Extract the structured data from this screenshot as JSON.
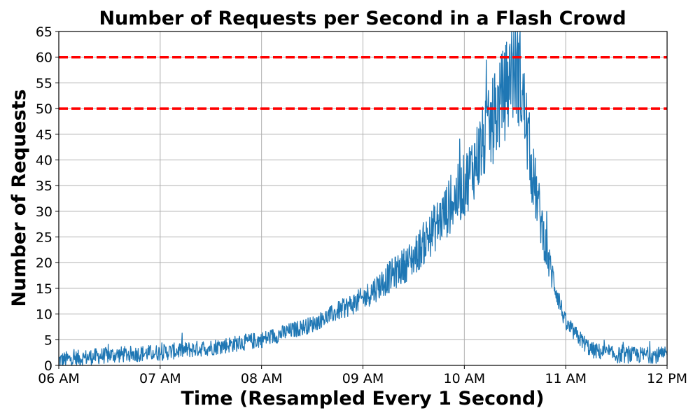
{
  "chart_data": {
    "type": "line",
    "title": "Number of Requests per Second in a Flash Crowd",
    "xlabel": "Time (Resampled Every 1 Second)",
    "ylabel": "Number of Requests",
    "x_ticks": [
      "06 AM",
      "07 AM",
      "08 AM",
      "09 AM",
      "10 AM",
      "11 AM",
      "12 PM"
    ],
    "x_range": [
      "06:00",
      "12:00"
    ],
    "ylim": [
      0,
      65
    ],
    "y_ticks": [
      0,
      5,
      10,
      15,
      20,
      25,
      30,
      35,
      40,
      45,
      50,
      55,
      60,
      65
    ],
    "grid": true,
    "series": [
      {
        "color": "#1f77b4",
        "resample_interval_seconds": 1,
        "trend_points": [
          {
            "time": "06:00",
            "value": 1
          },
          {
            "time": "06:30",
            "value": 2
          },
          {
            "time": "07:00",
            "value": 2.5
          },
          {
            "time": "07:30",
            "value": 3.5
          },
          {
            "time": "08:00",
            "value": 5
          },
          {
            "time": "08:30",
            "value": 8
          },
          {
            "time": "09:00",
            "value": 13
          },
          {
            "time": "09:30",
            "value": 21
          },
          {
            "time": "10:00",
            "value": 35
          },
          {
            "time": "10:15",
            "value": 46
          },
          {
            "time": "10:30",
            "value": 58
          },
          {
            "time": "10:33",
            "value": 56
          },
          {
            "time": "10:40",
            "value": 38
          },
          {
            "time": "10:50",
            "value": 20
          },
          {
            "time": "11:00",
            "value": 8
          },
          {
            "time": "11:15",
            "value": 3
          },
          {
            "time": "11:30",
            "value": 2
          },
          {
            "time": "12:00",
            "value": 2
          }
        ],
        "peak": {
          "time": "10:28",
          "value": 65
        }
      }
    ],
    "reference_lines": [
      {
        "y": 60,
        "color": "#ff0000",
        "style": "dashed"
      },
      {
        "y": 50,
        "color": "#ff0000",
        "style": "dashed"
      }
    ]
  }
}
